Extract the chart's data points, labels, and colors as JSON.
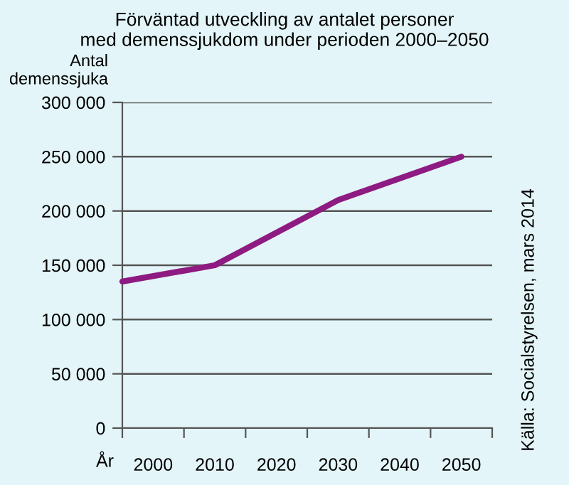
{
  "chart_data": {
    "type": "line",
    "title": "Förväntad utveckling av antalet personer\nmed demenssjukdom under perioden 2000–2050",
    "ylabel": "Antal\ndemenssjuka",
    "xlabel": "År",
    "annotations": [
      "Källa: Socialstyrelsen, mars 2014"
    ],
    "x": [
      1995,
      2010,
      2030,
      2050
    ],
    "series": [
      {
        "color": "#8e1b82",
        "values": [
          135000,
          150000,
          210000,
          250000
        ]
      }
    ],
    "xlim": [
      1995,
      2055
    ],
    "xticks": [
      {
        "value": 1995,
        "label": null
      },
      {
        "value": 2000,
        "label": "2000"
      },
      {
        "value": 2005,
        "label": null
      },
      {
        "value": 2010,
        "label": "2010"
      },
      {
        "value": 2015,
        "label": null
      },
      {
        "value": 2020,
        "label": "2020"
      },
      {
        "value": 2025,
        "label": null
      },
      {
        "value": 2030,
        "label": "2030"
      },
      {
        "value": 2035,
        "label": null
      },
      {
        "value": 2040,
        "label": "2040"
      },
      {
        "value": 2045,
        "label": null
      },
      {
        "value": 2050,
        "label": "2050"
      },
      {
        "value": 2055,
        "label": null
      }
    ],
    "ylim": [
      0,
      300000
    ],
    "yticks": [
      0,
      {
        "value": 50000,
        "label": "50 000"
      },
      {
        "value": 100000,
        "label": "100 000"
      },
      {
        "value": 150000,
        "label": "150 000"
      },
      {
        "value": 200000,
        "label": "200 000"
      },
      {
        "value": 250000,
        "label": "250 000"
      },
      {
        "value": 300000,
        "label": "300 000"
      }
    ],
    "grid": "y",
    "legend": false,
    "marker": "none",
    "line_style": "solid"
  }
}
